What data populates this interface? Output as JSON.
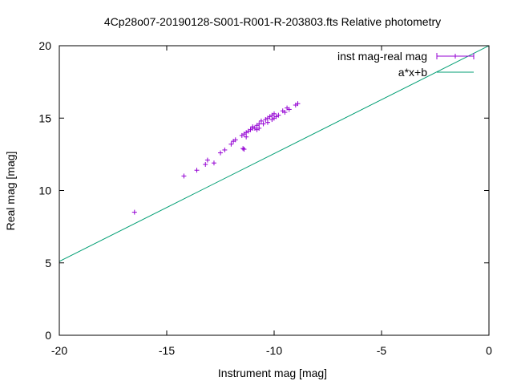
{
  "chart_data": {
    "type": "scatter",
    "title": "4Cp28o07-20190128-S001-R001-R-203803.fts Relative photometry",
    "xlabel": "Instrument mag [mag]",
    "ylabel": "Real mag [mag]",
    "xlim": [
      -20,
      0
    ],
    "ylim": [
      0,
      20
    ],
    "x_ticks": [
      -20,
      -15,
      -10,
      -5,
      0
    ],
    "y_ticks": [
      0,
      5,
      10,
      15,
      20
    ],
    "x_tick_labels": [
      "-20",
      "-15",
      "-10",
      "-5",
      "0"
    ],
    "y_tick_labels": [
      "0",
      "5",
      "10",
      "15",
      "20"
    ],
    "grid": false,
    "legend_position": "top-right",
    "series": [
      {
        "name": "inst mag-real mag",
        "style": "points-with-errorbars",
        "color": "#9400d3",
        "points": [
          [
            -16.5,
            8.5
          ],
          [
            -14.2,
            11.0
          ],
          [
            -13.6,
            11.4
          ],
          [
            -13.2,
            11.8
          ],
          [
            -13.1,
            12.1
          ],
          [
            -12.8,
            11.9
          ],
          [
            -12.5,
            12.6
          ],
          [
            -12.3,
            12.8
          ],
          [
            -12.0,
            13.2
          ],
          [
            -11.9,
            13.4
          ],
          [
            -11.8,
            13.5
          ],
          [
            -11.5,
            13.8
          ],
          [
            -11.45,
            12.9
          ],
          [
            -11.4,
            12.85
          ],
          [
            -11.4,
            13.9
          ],
          [
            -11.3,
            13.7
          ],
          [
            -11.3,
            14.0
          ],
          [
            -11.2,
            14.1
          ],
          [
            -11.1,
            14.2
          ],
          [
            -11.0,
            14.3
          ],
          [
            -11.0,
            14.4
          ],
          [
            -10.9,
            14.3
          ],
          [
            -10.8,
            14.5
          ],
          [
            -10.8,
            14.2
          ],
          [
            -10.7,
            14.3
          ],
          [
            -10.7,
            14.6
          ],
          [
            -10.6,
            14.8
          ],
          [
            -10.5,
            14.6
          ],
          [
            -10.4,
            14.9
          ],
          [
            -10.3,
            15.0
          ],
          [
            -10.3,
            14.7
          ],
          [
            -10.2,
            15.1
          ],
          [
            -10.1,
            14.9
          ],
          [
            -10.1,
            15.2
          ],
          [
            -10.0,
            15.0
          ],
          [
            -10.0,
            15.3
          ],
          [
            -9.9,
            15.1
          ],
          [
            -9.8,
            15.2
          ],
          [
            -9.6,
            15.5
          ],
          [
            -9.5,
            15.4
          ],
          [
            -9.4,
            15.7
          ],
          [
            -9.3,
            15.6
          ],
          [
            -9.0,
            15.9
          ],
          [
            -8.9,
            16.0
          ]
        ]
      },
      {
        "name": "a*x+b",
        "style": "line",
        "color": "#009e73",
        "fit": {
          "a": 0.745,
          "b": 20.0
        }
      }
    ]
  }
}
